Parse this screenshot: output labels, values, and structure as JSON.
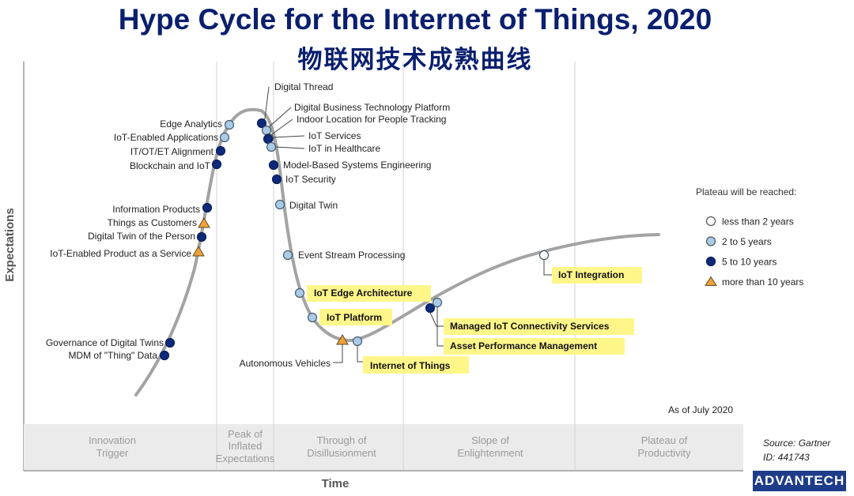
{
  "header": {
    "title": "Hype Cycle for the Internet of Things, 2020",
    "subtitle": "物联网技术成熟曲线"
  },
  "chart_data": {
    "type": "scatter",
    "title": "Hype Cycle for the Internet of Things, 2020",
    "xlabel": "Time",
    "ylabel": "Expectations",
    "phases": [
      "Innovation Trigger",
      "Peak of Inflated Expectations",
      "Through of Disillusionment",
      "Slope of Enlightenment",
      "Plateau of Productivity"
    ],
    "legend": {
      "title": "Plateau will be reached:",
      "placement": "right",
      "items": [
        {
          "key": "lt2",
          "label": "less than 2 years",
          "shape": "circle",
          "color": "#ffffff"
        },
        {
          "key": "2to5",
          "label": "2 to 5 years",
          "shape": "circle",
          "color": "#a8cbe8"
        },
        {
          "key": "5to10",
          "label": "5 to 10 years",
          "shape": "circle",
          "color": "#0d2a78"
        },
        {
          "key": "gt10",
          "label": "more than 10 years",
          "shape": "triangle",
          "color": "#f0a236"
        }
      ]
    },
    "note": "As of July 2020",
    "points": [
      {
        "label": "Governance of Digital Twins",
        "category": "5to10",
        "highlight": false
      },
      {
        "label": "MDM of \"Thing\" Data",
        "category": "5to10",
        "highlight": false
      },
      {
        "label": "IoT-Enabled Product as a Service",
        "category": "gt10",
        "highlight": false
      },
      {
        "label": "Digital Twin of the Person",
        "category": "5to10",
        "highlight": false
      },
      {
        "label": "Things as Customers",
        "category": "gt10",
        "highlight": false
      },
      {
        "label": "Information Products",
        "category": "5to10",
        "highlight": false
      },
      {
        "label": "Blockchain and IoT",
        "category": "5to10",
        "highlight": false
      },
      {
        "label": "IT/OT/ET Alignment",
        "category": "5to10",
        "highlight": false
      },
      {
        "label": "IoT-Enabled Applications",
        "category": "2to5",
        "highlight": false
      },
      {
        "label": "Edge Analytics",
        "category": "2to5",
        "highlight": false
      },
      {
        "label": "Digital Thread",
        "category": "5to10",
        "highlight": false
      },
      {
        "label": "Digital Business Technology Platform",
        "category": "2to5",
        "highlight": false
      },
      {
        "label": "Indoor Location for People Tracking",
        "category": "2to5",
        "highlight": false
      },
      {
        "label": "IoT Services",
        "category": "5to10",
        "highlight": false
      },
      {
        "label": "IoT in Healthcare",
        "category": "2to5",
        "highlight": false
      },
      {
        "label": "Model-Based Systems Engineering",
        "category": "5to10",
        "highlight": false
      },
      {
        "label": "IoT Security",
        "category": "5to10",
        "highlight": false
      },
      {
        "label": "Digital Twin",
        "category": "2to5",
        "highlight": false
      },
      {
        "label": "Event Stream Processing",
        "category": "2to5",
        "highlight": false
      },
      {
        "label": "IoT Edge Architecture",
        "category": "2to5",
        "highlight": true
      },
      {
        "label": "IoT Platform",
        "category": "2to5",
        "highlight": true
      },
      {
        "label": "Autonomous Vehicles",
        "category": "gt10",
        "highlight": false
      },
      {
        "label": "Internet of Things",
        "category": "2to5",
        "highlight": true
      },
      {
        "label": "Managed IoT Connectivity Services",
        "category": "5to10",
        "highlight": true
      },
      {
        "label": "Asset Performance Management",
        "category": "2to5",
        "highlight": true
      },
      {
        "label": "IoT Integration",
        "category": "lt2",
        "highlight": true
      }
    ]
  },
  "source": {
    "line1": "Source: Gartner",
    "line2": "ID: 441743"
  },
  "logo": {
    "text": "ADVANTECH"
  }
}
